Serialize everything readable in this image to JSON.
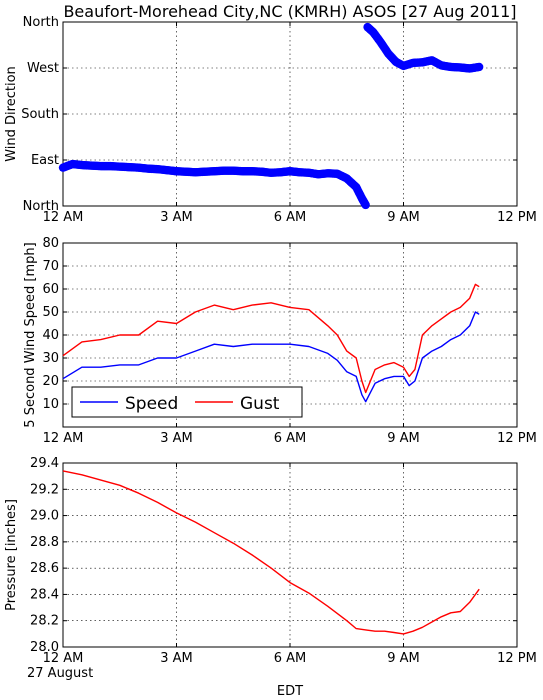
{
  "title": "Beaufort-Morehead City,NC (KMRH) ASOS [27 Aug 2011]",
  "x_axis": {
    "tick_labels": [
      "12 AM",
      "3 AM",
      "6 AM",
      "9 AM",
      "12 PM"
    ],
    "tick_hours": [
      0,
      3,
      6,
      9,
      12
    ],
    "date_label": "27 August",
    "xlabel": "EDT"
  },
  "chart_data": [
    {
      "type": "scatter",
      "ylabel": "Wind Direction",
      "ylim": [
        0,
        360
      ],
      "ytick_values": [
        0,
        90,
        180,
        270,
        360
      ],
      "ytick_labels": [
        "North",
        "East",
        "South",
        "West",
        "North"
      ],
      "grid": true,
      "color": "#0000ff",
      "series": [
        {
          "x": [
            0.0,
            0.25,
            0.5,
            0.75,
            1.0,
            1.25,
            1.5,
            1.75,
            2.0,
            2.25,
            2.5,
            2.75,
            3.0,
            3.25,
            3.5,
            3.75,
            4.0,
            4.25,
            4.5,
            4.75,
            5.0,
            5.25,
            5.5,
            5.75,
            6.0,
            6.25,
            6.5,
            6.75,
            7.0,
            7.25,
            7.5,
            7.75,
            7.9,
            8.0,
            8.05,
            8.2,
            8.4,
            8.6,
            8.8,
            9.0,
            9.25,
            9.5,
            9.75,
            10.0,
            10.25,
            10.5,
            10.75,
            11.0
          ],
          "y": [
            75,
            82,
            80,
            79,
            78,
            78,
            77,
            76,
            75,
            73,
            72,
            70,
            68,
            67,
            66,
            67,
            68,
            69,
            69,
            68,
            68,
            67,
            65,
            66,
            68,
            66,
            65,
            62,
            64,
            63,
            54,
            37,
            15,
            2,
            350,
            340,
            320,
            298,
            282,
            274,
            280,
            281,
            285,
            275,
            272,
            271,
            269,
            272
          ]
        }
      ]
    },
    {
      "type": "line",
      "ylabel": "5 Second Wind Speed [mph]",
      "ylim": [
        0,
        80
      ],
      "ytick_values": [
        10,
        20,
        30,
        40,
        50,
        60,
        70,
        80
      ],
      "grid": true,
      "legend": "lower-left",
      "series": [
        {
          "name": "Speed",
          "color": "#0000ff",
          "x": [
            0.0,
            0.5,
            1.0,
            1.5,
            2.0,
            2.5,
            3.0,
            3.5,
            4.0,
            4.5,
            5.0,
            5.5,
            6.0,
            6.5,
            7.0,
            7.25,
            7.5,
            7.75,
            7.9,
            8.0,
            8.25,
            8.5,
            8.75,
            9.0,
            9.15,
            9.3,
            9.5,
            9.75,
            10.0,
            10.25,
            10.5,
            10.75,
            10.9,
            11.0
          ],
          "y": [
            21,
            26,
            26,
            27,
            27,
            30,
            30,
            33,
            36,
            35,
            36,
            36,
            36,
            35,
            32,
            29,
            24,
            22,
            14,
            11,
            19,
            21,
            22,
            22,
            18,
            20,
            30,
            33,
            35,
            38,
            40,
            44,
            50,
            49
          ]
        },
        {
          "name": "Gust",
          "color": "#ff0000",
          "x": [
            0.0,
            0.5,
            1.0,
            1.5,
            2.0,
            2.5,
            3.0,
            3.5,
            4.0,
            4.5,
            5.0,
            5.5,
            6.0,
            6.5,
            7.0,
            7.25,
            7.5,
            7.75,
            7.9,
            8.0,
            8.25,
            8.5,
            8.75,
            9.0,
            9.15,
            9.3,
            9.5,
            9.75,
            10.0,
            10.25,
            10.5,
            10.75,
            10.9,
            11.0
          ],
          "y": [
            31,
            37,
            38,
            40,
            40,
            46,
            45,
            50,
            53,
            51,
            53,
            54,
            52,
            51,
            44,
            40,
            33,
            30,
            20,
            15,
            25,
            27,
            28,
            26,
            22,
            25,
            40,
            44,
            47,
            50,
            52,
            56,
            62,
            61
          ]
        }
      ]
    },
    {
      "type": "line",
      "ylabel": "Pressure [inches]",
      "ylim": [
        28.0,
        29.4
      ],
      "ytick_values": [
        28.0,
        28.2,
        28.4,
        28.6,
        28.8,
        29.0,
        29.2,
        29.4
      ],
      "ytick_labels": [
        "28.0",
        "28.2",
        "28.4",
        "28.6",
        "28.8",
        "29.0",
        "29.2",
        "29.4"
      ],
      "grid": true,
      "series": [
        {
          "color": "#ff0000",
          "x": [
            0.0,
            0.5,
            1.0,
            1.5,
            2.0,
            2.5,
            3.0,
            3.5,
            4.0,
            4.5,
            5.0,
            5.5,
            6.0,
            6.5,
            7.0,
            7.5,
            7.75,
            8.0,
            8.25,
            8.5,
            8.75,
            9.0,
            9.25,
            9.5,
            9.75,
            10.0,
            10.25,
            10.5,
            10.75,
            11.0
          ],
          "y": [
            29.34,
            29.31,
            29.27,
            29.23,
            29.17,
            29.1,
            29.02,
            28.95,
            28.87,
            28.79,
            28.7,
            28.6,
            28.49,
            28.41,
            28.31,
            28.2,
            28.14,
            28.13,
            28.12,
            28.12,
            28.11,
            28.1,
            28.12,
            28.15,
            28.19,
            28.23,
            28.26,
            28.27,
            28.34,
            28.44
          ]
        }
      ]
    }
  ]
}
